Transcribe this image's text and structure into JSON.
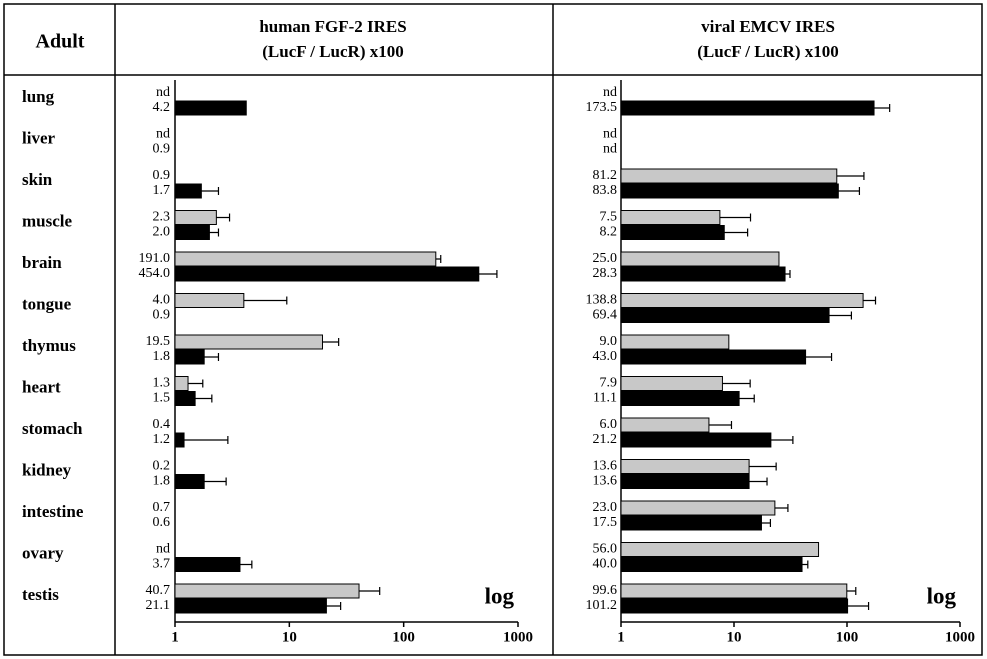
{
  "corner_label": "Adult",
  "chart_data": [
    {
      "type": "bar",
      "title": "human FGF-2 IRES",
      "subtitle": "(LucF / LucR) x100",
      "annotation": "log",
      "log_x": true,
      "categories": [
        "lung",
        "liver",
        "skin",
        "muscle",
        "brain",
        "tongue",
        "thymus",
        "heart",
        "stomach",
        "kidney",
        "intestine",
        "ovary",
        "testis"
      ],
      "xlim": [
        1,
        1000
      ],
      "xticks": [
        1,
        10,
        100,
        1000
      ],
      "series": [
        {
          "color": "#c8c8c8",
          "values": [
            null,
            null,
            0.9,
            2.3,
            191,
            4,
            19.5,
            1.3,
            0.4,
            0.2,
            0.7,
            null,
            40.7
          ],
          "value_labels": [
            "nd",
            "nd",
            "0.9",
            "2.3",
            "191.0",
            "4.0",
            "19.5",
            "1.3",
            "0.4",
            "0.2",
            "0.7",
            "nd",
            "40.7"
          ],
          "errors": [
            null,
            null,
            null,
            0.7,
            20,
            5.5,
            7.5,
            0.45,
            null,
            null,
            null,
            null,
            21
          ]
        },
        {
          "color": "#000000",
          "values": [
            4.2,
            0.9,
            1.7,
            2,
            454,
            0.9,
            1.8,
            1.5,
            1.2,
            1.8,
            0.6,
            3.7,
            21.1
          ],
          "value_labels": [
            "4.2",
            "0.9",
            "1.7",
            "2.0",
            "454.0",
            "0.9",
            "1.8",
            "1.5",
            "1.2",
            "1.8",
            "0.6",
            "3.7",
            "21.1"
          ],
          "errors": [
            null,
            null,
            0.7,
            0.4,
            200,
            null,
            0.6,
            0.6,
            1.7,
            1,
            null,
            1,
            7
          ]
        }
      ]
    },
    {
      "type": "bar",
      "title": "viral EMCV IRES",
      "subtitle": "(LucF / LucR) x100",
      "annotation": "log",
      "log_x": true,
      "xlim": [
        1,
        1000
      ],
      "xticks": [
        1,
        10,
        100,
        1000
      ],
      "series": [
        {
          "color": "#c8c8c8",
          "values": [
            null,
            null,
            81.2,
            7.5,
            25,
            138.8,
            9,
            7.9,
            6,
            13.6,
            23,
            56,
            99.6
          ],
          "value_labels": [
            "nd",
            "nd",
            "81.2",
            "7.5",
            "25.0",
            "138.8",
            "9.0",
            "7.9",
            "6.0",
            "13.6",
            "23.0",
            "56.0",
            "99.6"
          ],
          "errors": [
            null,
            null,
            60,
            6.5,
            null,
            40,
            null,
            6,
            3.5,
            10,
            7,
            null,
            20
          ]
        },
        {
          "color": "#000000",
          "values": [
            173.5,
            null,
            83.8,
            8.2,
            28.3,
            69.4,
            43,
            11.1,
            21.2,
            13.6,
            17.5,
            40,
            101.2
          ],
          "value_labels": [
            "173.5",
            "nd",
            "83.8",
            "8.2",
            "28.3",
            "69.4",
            "43.0",
            "11.1",
            "21.2",
            "13.6",
            "17.5",
            "40.0",
            "101.2"
          ],
          "errors": [
            65,
            null,
            45,
            5,
            3,
            40,
            30,
            4,
            12,
            6,
            3.5,
            5,
            54
          ]
        }
      ]
    }
  ]
}
